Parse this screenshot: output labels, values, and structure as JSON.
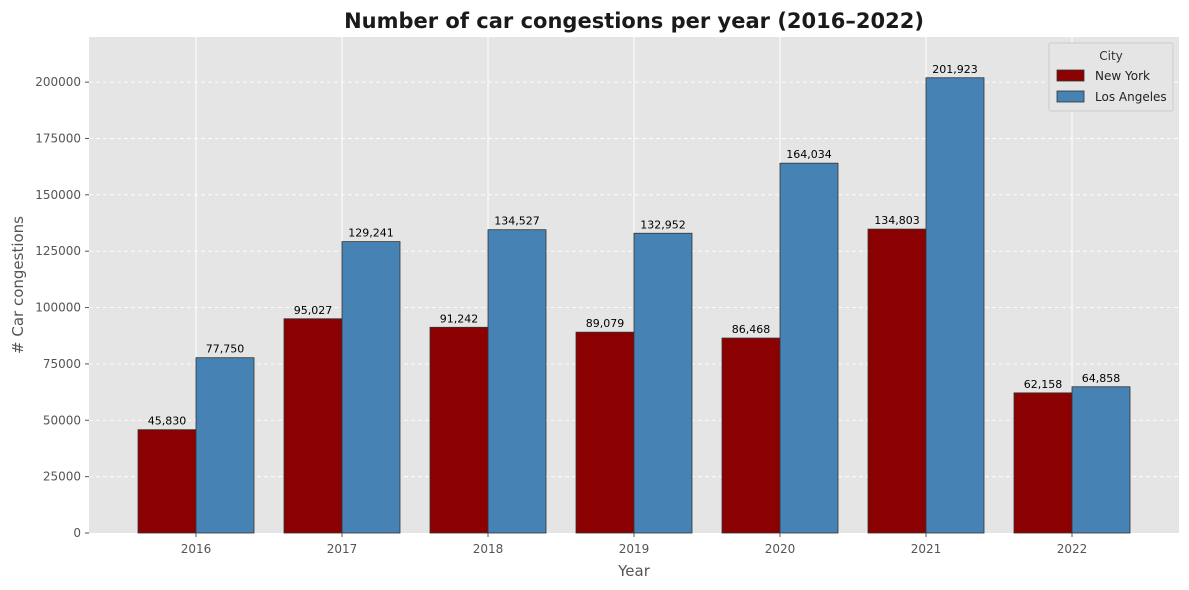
{
  "chart_data": {
    "type": "bar",
    "title": "Number of car congestions per year (2016–2022)",
    "xlabel": "Year",
    "ylabel": "# Car congestions",
    "categories": [
      "2016",
      "2017",
      "2018",
      "2019",
      "2020",
      "2021",
      "2022"
    ],
    "series": [
      {
        "name": "New York",
        "color": "#8b0000",
        "values": [
          45830,
          95027,
          91242,
          89079,
          86468,
          134803,
          62158
        ],
        "labels": [
          "45,830",
          "95,027",
          "91,242",
          "89,079",
          "86,468",
          "134,803",
          "62,158"
        ]
      },
      {
        "name": "Los Angeles",
        "color": "#4682b4",
        "values": [
          77750,
          129241,
          134527,
          132952,
          164034,
          201923,
          64858
        ],
        "labels": [
          "77,750",
          "129,241",
          "134,527",
          "132,952",
          "164,034",
          "201,923",
          "64,858"
        ]
      }
    ],
    "ylim": [
      0,
      220000
    ],
    "yticks": [
      0,
      25000,
      50000,
      75000,
      100000,
      125000,
      150000,
      175000,
      200000
    ],
    "ytick_labels": [
      "0",
      "25000",
      "50000",
      "75000",
      "100000",
      "125000",
      "150000",
      "175000",
      "200000"
    ],
    "grid": true,
    "legend": {
      "title": "City",
      "position": "top-right"
    }
  }
}
